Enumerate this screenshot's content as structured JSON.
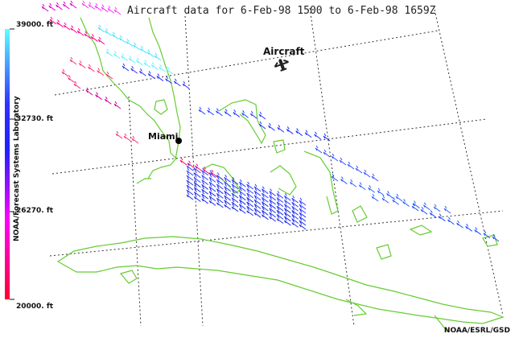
{
  "title": "Aircraft data for 6-Feb-98 1500 to 6-Feb-98 1659Z",
  "colorbar": {
    "label": "NOAA/Forecast Systems Laboratory",
    "ticks": [
      {
        "label": "39000. ft",
        "value": 39000
      },
      {
        "label": "32730. ft",
        "value": 32730
      },
      {
        "label": "26270. ft",
        "value": 26270
      },
      {
        "label": "20000. ft",
        "value": 20000
      }
    ],
    "colors": [
      "#ff0040",
      "#ff00ff",
      "#0000ff",
      "#00ffff"
    ]
  },
  "legend": {
    "label": "Aircraft",
    "icon": "airplane-icon"
  },
  "city": {
    "name": "Miami"
  },
  "credit": "NOAA/ESRL/GSD",
  "colors": {
    "coastline": "#66cc33",
    "grid": "#333333"
  }
}
